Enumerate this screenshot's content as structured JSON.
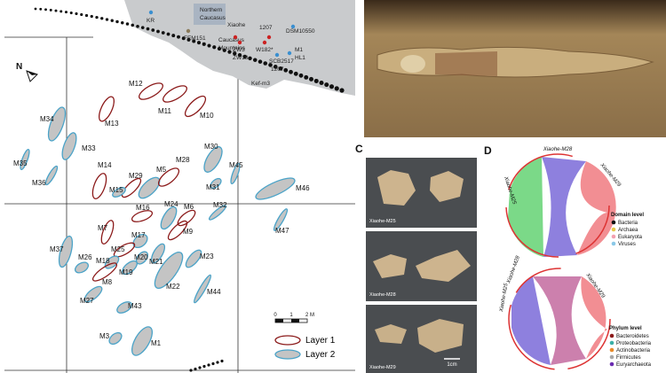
{
  "map": {
    "north": "N",
    "inset_labels": [
      "KR",
      "Northern",
      "Caucasus",
      "Caucasus",
      "Mountains",
      "FEM151",
      "Xiaohe",
      "1207",
      "DSM10550",
      "ZW3",
      "ZW18",
      "W182*",
      "M1",
      "HL1",
      "SCB2517",
      "1207",
      "Kef-m3"
    ],
    "tombs": [
      "M12",
      "M11",
      "M10",
      "M13",
      "M34",
      "M33",
      "M35",
      "M36",
      "M14",
      "M29",
      "M15",
      "M5",
      "M28",
      "M30",
      "M31",
      "M45",
      "M46",
      "M32",
      "M47",
      "M16",
      "M24",
      "M6",
      "M7",
      "M9",
      "M17",
      "M25",
      "M37",
      "M26",
      "M18",
      "M20",
      "M21",
      "M23",
      "M8",
      "M19",
      "M22",
      "M27",
      "M44",
      "M43",
      "M3",
      "M1"
    ],
    "scale": [
      "0",
      "1",
      "2 M"
    ],
    "legend": [
      "Layer 1",
      "Layer 2"
    ]
  },
  "panel_c": {
    "label": "C",
    "samples": [
      "Xiaohe-M25",
      "Xiaohe-M28",
      "Xiaohe-M29"
    ],
    "scale_bar": "1cm"
  },
  "panel_d": {
    "label": "D",
    "domain": {
      "chord_labels": [
        "Xiaohe-M28",
        "Xiaohe-M25",
        "Xiaohe-M29"
      ],
      "title": "Domain level",
      "items": [
        "Bacteria",
        "Archaea",
        "Eukaryota",
        "Viruses"
      ]
    },
    "phylum": {
      "chord_labels": [
        "Xiaohe-M28",
        "Xiaohe-M25",
        "Xiaohe-M29"
      ],
      "title": "Phylum level",
      "items": [
        "Bacteroidetes",
        "Proteobacteria",
        "Actinobacteria",
        "Firmicutes",
        "Euryarchaeota"
      ]
    }
  }
}
